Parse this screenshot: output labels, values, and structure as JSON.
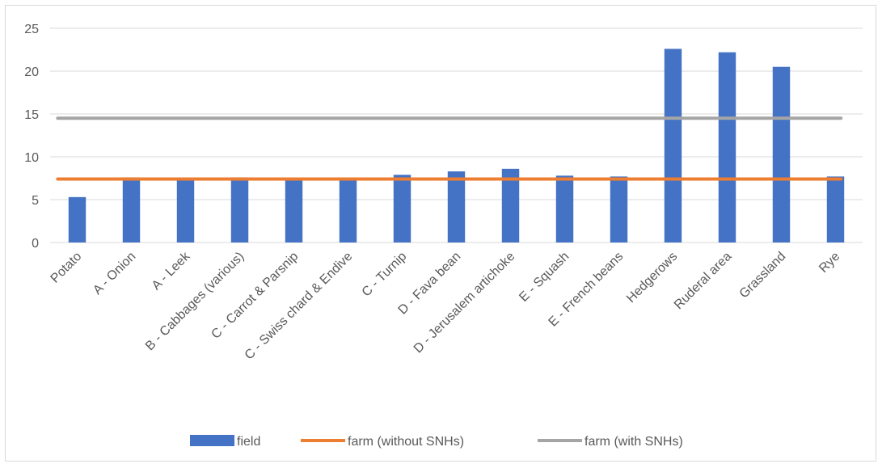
{
  "chart_data": {
    "type": "bar",
    "title": "",
    "xlabel": "",
    "ylabel": "",
    "ylim": [
      0,
      25
    ],
    "yticks": [
      0,
      5,
      10,
      15,
      20,
      25
    ],
    "grid": true,
    "legend_position": "bottom",
    "categories": [
      "Potato",
      "A - Onion",
      "A - Leek",
      "B - Cabbages (various)",
      "C - Carrot & Parsnip",
      "C - Swiss chard & Endive",
      "C - Turnip",
      "D - Fava bean",
      "D - Jerusalem artichoke",
      "E - Squash",
      "E - French beans",
      "Hedgerows",
      "Ruderal area",
      "Grassland",
      "Rye"
    ],
    "series": [
      {
        "name": "field",
        "kind": "bar",
        "color": "#4472c4",
        "values": [
          5.3,
          7.6,
          7.4,
          7.6,
          7.4,
          7.4,
          7.9,
          8.3,
          8.6,
          7.8,
          7.7,
          22.6,
          22.2,
          20.5,
          7.7
        ]
      },
      {
        "name": "farm (without SNHs)",
        "kind": "line",
        "color": "#ed7d31",
        "values": [
          7.4,
          7.4,
          7.4,
          7.4,
          7.4,
          7.4,
          7.4,
          7.4,
          7.4,
          7.4,
          7.4,
          7.4,
          7.4,
          7.4,
          7.4
        ]
      },
      {
        "name": "farm (with SNHs)",
        "kind": "line",
        "color": "#a5a5a5",
        "values": [
          14.5,
          14.5,
          14.5,
          14.5,
          14.5,
          14.5,
          14.5,
          14.5,
          14.5,
          14.5,
          14.5,
          14.5,
          14.5,
          14.5,
          14.5
        ]
      }
    ]
  }
}
